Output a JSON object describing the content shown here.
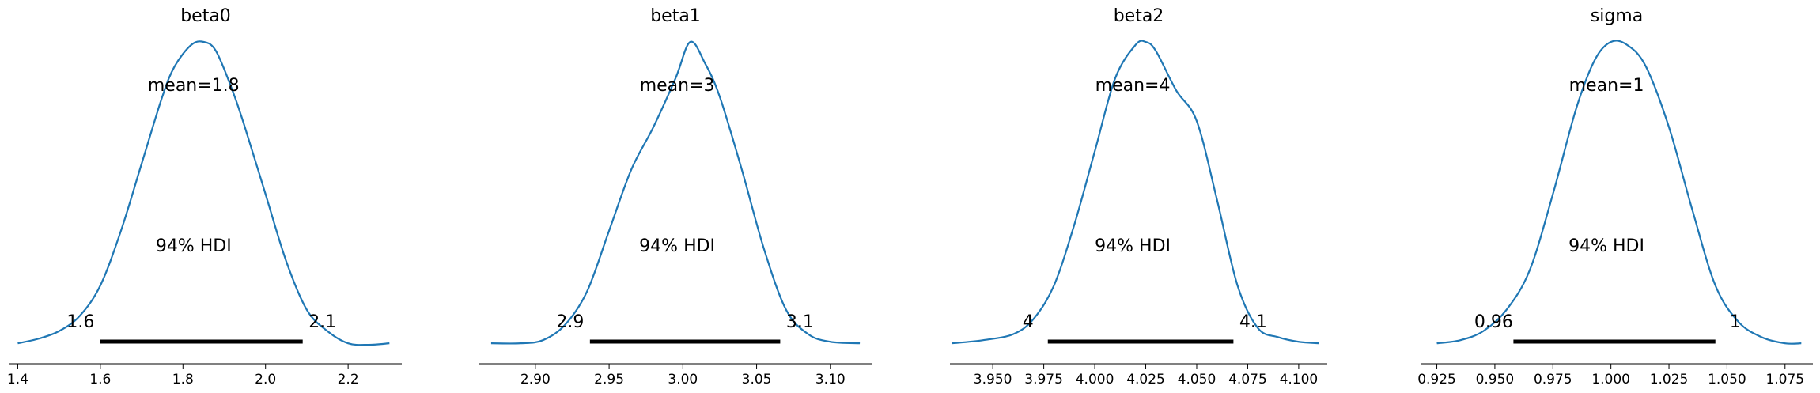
{
  "chart_data": [
    {
      "type": "area",
      "title": "beta0",
      "mean_label": "mean=1.8",
      "hdi_label": "94% HDI",
      "hdi": [
        1.6,
        2.09
      ],
      "hdi_labels": [
        "1.6",
        "2.1"
      ],
      "xlim": [
        1.38,
        2.33
      ],
      "xticks": [
        1.4,
        1.6,
        1.8,
        2.0,
        2.2
      ],
      "xtick_labels": [
        "1.4",
        "1.6",
        "1.8",
        "2.0",
        "2.2"
      ],
      "density": {
        "x": [
          1.4,
          1.45,
          1.5,
          1.55,
          1.6,
          1.65,
          1.7,
          1.75,
          1.78,
          1.82,
          1.85,
          1.88,
          1.92,
          1.95,
          2.0,
          2.05,
          2.1,
          2.15,
          2.2,
          2.25,
          2.3
        ],
        "y": [
          0.01,
          0.025,
          0.05,
          0.1,
          0.2,
          0.38,
          0.6,
          0.82,
          0.92,
          0.99,
          1.0,
          0.97,
          0.84,
          0.72,
          0.5,
          0.28,
          0.12,
          0.05,
          0.01,
          0.005,
          0.01
        ]
      }
    },
    {
      "type": "area",
      "title": "beta1",
      "mean_label": "mean=3",
      "hdi_label": "94% HDI",
      "hdi": [
        2.937,
        3.066
      ],
      "hdi_labels": [
        "2.9",
        "3.1"
      ],
      "xlim": [
        2.862,
        3.128
      ],
      "xticks": [
        2.9,
        2.95,
        3.0,
        3.05,
        3.1
      ],
      "xtick_labels": [
        "2.90",
        "2.95",
        "3.00",
        "3.05",
        "3.10"
      ],
      "density": {
        "x": [
          2.87,
          2.89,
          2.905,
          2.92,
          2.935,
          2.95,
          2.965,
          2.98,
          2.995,
          3.005,
          3.015,
          3.025,
          3.04,
          3.055,
          3.07,
          3.085,
          3.1,
          3.12
        ],
        "y": [
          0.01,
          0.01,
          0.02,
          0.07,
          0.18,
          0.38,
          0.58,
          0.72,
          0.88,
          1.0,
          0.93,
          0.82,
          0.58,
          0.32,
          0.12,
          0.04,
          0.015,
          0.01
        ]
      }
    },
    {
      "type": "area",
      "title": "beta2",
      "mean_label": "mean=4",
      "hdi_label": "94% HDI",
      "hdi": [
        3.977,
        4.068
      ],
      "hdi_labels": [
        "4",
        "4.1"
      ],
      "xlim": [
        3.929,
        4.114
      ],
      "xticks": [
        3.95,
        3.975,
        4.0,
        4.025,
        4.05,
        4.075,
        4.1
      ],
      "xtick_labels": [
        "3.950",
        "3.975",
        "4.000",
        "4.025",
        "4.050",
        "4.075",
        "4.100"
      ],
      "density": {
        "x": [
          3.93,
          3.945,
          3.96,
          3.97,
          3.98,
          3.99,
          4.0,
          4.01,
          4.02,
          4.025,
          4.03,
          4.04,
          4.05,
          4.06,
          4.07,
          4.08,
          4.09,
          4.1,
          4.11
        ],
        "y": [
          0.01,
          0.02,
          0.04,
          0.09,
          0.2,
          0.4,
          0.64,
          0.88,
          0.99,
          1.0,
          0.97,
          0.84,
          0.74,
          0.48,
          0.2,
          0.06,
          0.03,
          0.015,
          0.01
        ]
      }
    },
    {
      "type": "area",
      "title": "sigma",
      "mean_label": "mean=1",
      "hdi_label": "94% HDI",
      "hdi": [
        0.958,
        1.045
      ],
      "hdi_labels": [
        "0.96",
        "1"
      ],
      "xlim": [
        0.918,
        1.087
      ],
      "xticks": [
        0.925,
        0.95,
        0.975,
        1.0,
        1.025,
        1.05,
        1.075
      ],
      "xtick_labels": [
        "0.925",
        "0.950",
        "0.975",
        "1.000",
        "1.025",
        "1.050",
        "1.075"
      ],
      "density": {
        "x": [
          0.925,
          0.935,
          0.945,
          0.955,
          0.965,
          0.975,
          0.985,
          0.993,
          1.0,
          1.007,
          1.015,
          1.025,
          1.035,
          1.045,
          1.055,
          1.065,
          1.075,
          1.082
        ],
        "y": [
          0.01,
          0.02,
          0.05,
          0.12,
          0.25,
          0.5,
          0.78,
          0.94,
          1.0,
          0.99,
          0.92,
          0.72,
          0.45,
          0.2,
          0.08,
          0.03,
          0.01,
          0.01
        ]
      }
    }
  ],
  "colors": {
    "density_line": "#1f77b4",
    "hdi_bar": "#000000",
    "axis": "#000000"
  }
}
